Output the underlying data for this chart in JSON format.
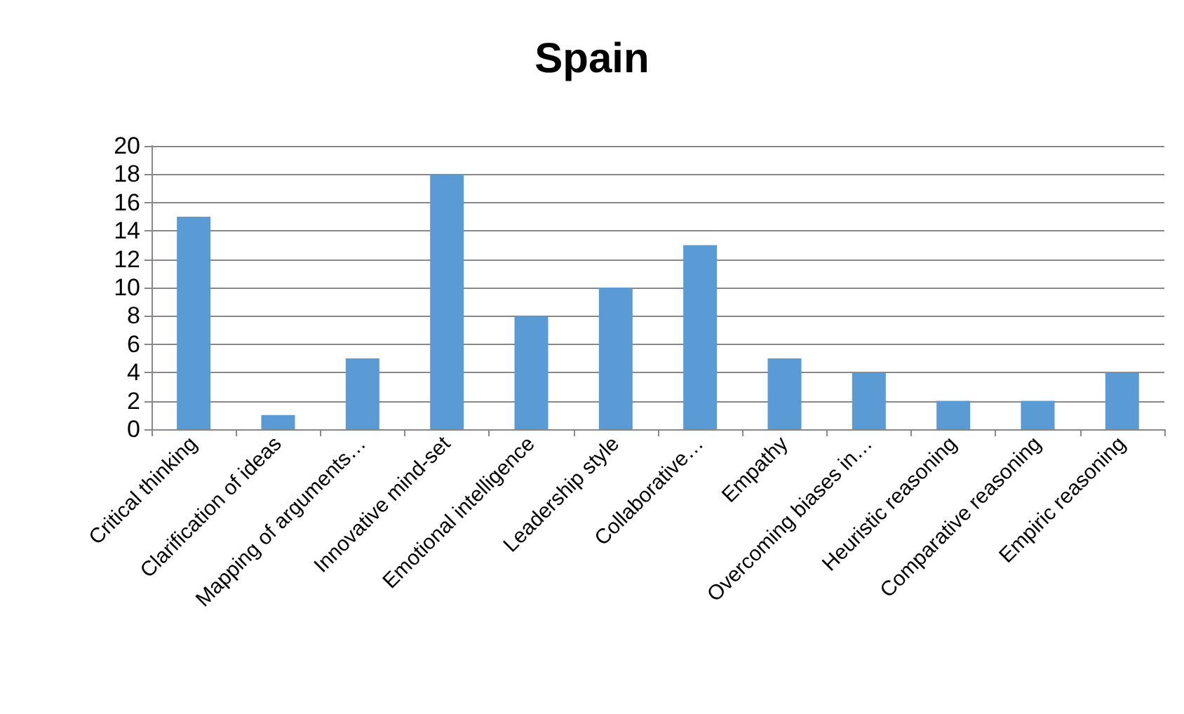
{
  "chart_data": {
    "type": "bar",
    "title": "Spain",
    "categories": [
      "Critical thinking",
      "Clarification of ideas",
      "Mapping of arguments…",
      "Innovative mind-set",
      "Emotional intelligence",
      "Leadership style",
      "Collaborative…",
      "Empathy",
      "Overcoming biases in…",
      "Heuristic reasoning",
      "Comparative reasoning",
      "Empiric reasoning"
    ],
    "values": [
      15,
      1,
      5,
      18,
      8,
      10,
      13,
      5,
      4,
      2,
      2,
      4
    ],
    "color": "#5b9bd5",
    "ylim": [
      0,
      20
    ],
    "yticks": [
      0,
      2,
      4,
      6,
      8,
      10,
      12,
      14,
      16,
      18,
      20
    ],
    "grid": "y"
  }
}
